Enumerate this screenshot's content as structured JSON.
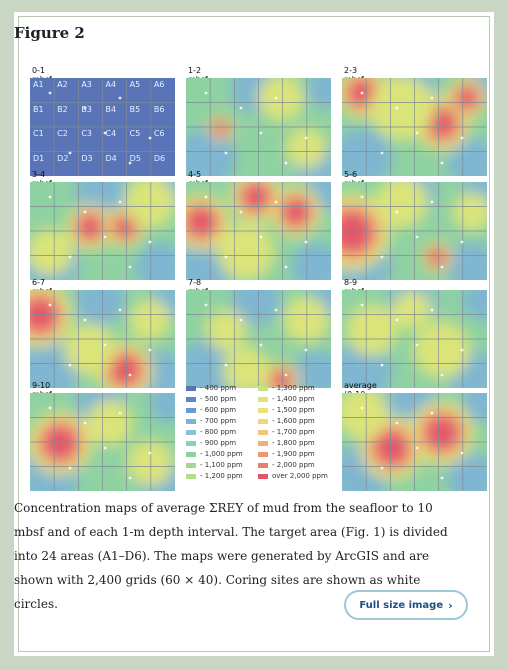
{
  "figure_title": "Figure 2",
  "panels": [
    {
      "label": "0-1 mbsf"
    },
    {
      "label": "1-2 mbsf"
    },
    {
      "label": "2-3 mbsf"
    },
    {
      "label": "3-4 mbsf"
    },
    {
      "label": "4-5 mbsf"
    },
    {
      "label": "5-6 mbsf"
    },
    {
      "label": "6-7 mbsf"
    },
    {
      "label": "7-8 mbsf"
    },
    {
      "label": "8-9 mbsf"
    },
    {
      "label": "9-10 mbsf"
    },
    {
      "label": "average (0-10 mbsf)"
    }
  ],
  "grid_cells": [
    "A1",
    "A2",
    "A3",
    "A4",
    "A5",
    "A6",
    "B1",
    "B2",
    "B3",
    "B4",
    "B5",
    "B6",
    "C1",
    "C2",
    "C3",
    "C4",
    "C5",
    "C6",
    "D1",
    "D2",
    "D3",
    "D4",
    "D5",
    "D6"
  ],
  "legend": [
    {
      "label": "- 400 ppm",
      "color": "#5a74b8"
    },
    {
      "label": "- 500 ppm",
      "color": "#5f86c4"
    },
    {
      "label": "- 600 ppm",
      "color": "#6b9ad0"
    },
    {
      "label": "- 700 ppm",
      "color": "#7db2d6"
    },
    {
      "label": "- 800 ppm",
      "color": "#86c4d2"
    },
    {
      "label": "- 900 ppm",
      "color": "#8acfb7"
    },
    {
      "label": "- 1,000 ppm",
      "color": "#8fd2a2"
    },
    {
      "label": "- 1,100 ppm",
      "color": "#a3d98e"
    },
    {
      "label": "- 1,200 ppm",
      "color": "#b6de86"
    },
    {
      "label": "- 1,300 ppm",
      "color": "#c9e27e"
    },
    {
      "label": "- 1,400 ppm",
      "color": "#dbe479"
    },
    {
      "label": "- 1,500 ppm",
      "color": "#ebe176"
    },
    {
      "label": "- 1,600 ppm",
      "color": "#f2d577"
    },
    {
      "label": "- 1,700 ppm",
      "color": "#f3c378"
    },
    {
      "label": "- 1,800 ppm",
      "color": "#f2ad78"
    },
    {
      "label": "- 1,900 ppm",
      "color": "#ee9675"
    },
    {
      "label": "- 2,000 ppm",
      "color": "#e97d72"
    },
    {
      "label": "over 2,000 ppm",
      "color": "#e3566a"
    }
  ],
  "caption": "Concentration maps of average ΣREY of mud from the seafloor to 10 mbsf and of each 1-m depth interval. The target area (Fig. 1) is divided into 24 areas (A1–D6). The maps were generated by ArcGIS and are shown with 2,400 grids (60 × 40). Coring sites are shown as white circles.",
  "full_size_button": "Full size image",
  "chevron_icon": "chevron-right-icon"
}
